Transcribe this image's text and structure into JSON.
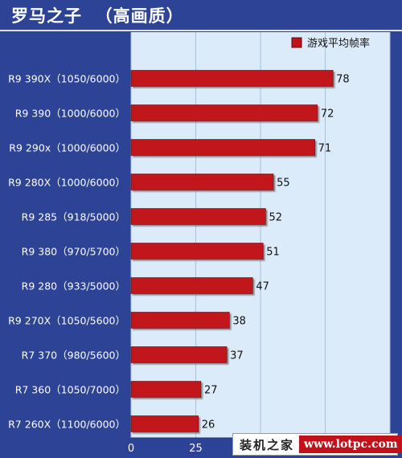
{
  "title": "罗马之子  （高画质）",
  "colors": {
    "background": "#2d4396",
    "plot_background": "#dcebfa",
    "bar": "#c1121b",
    "text_light": "#ffffff",
    "text_dark": "#111111"
  },
  "chart_data": {
    "type": "bar",
    "orientation": "horizontal",
    "categories": [
      "R9 390X（1050/6000）",
      "R9 390（1000/6000）",
      "R9 290x（1000/6000）",
      "R9 280X（1000/6000）",
      "R9 285（918/5000）",
      "R9 380（970/5700）",
      "R9 280（933/5000）",
      "R9 270X（1050/5600）",
      "R7 370（980/5600）",
      "R7 360（1050/7000）",
      "R7 260X（1100/6000）"
    ],
    "series": [
      {
        "name": "游戏平均帧率",
        "values": [
          78,
          72,
          71,
          55,
          52,
          51,
          47,
          38,
          37,
          27,
          26
        ]
      }
    ],
    "xlim": [
      0,
      100
    ],
    "x_ticks": [
      "0",
      "25"
    ],
    "grid": true,
    "legend": "top-right",
    "data_labels": true
  },
  "watermark": {
    "text_cn": "装机之家",
    "url": "www.lotpc.com"
  }
}
